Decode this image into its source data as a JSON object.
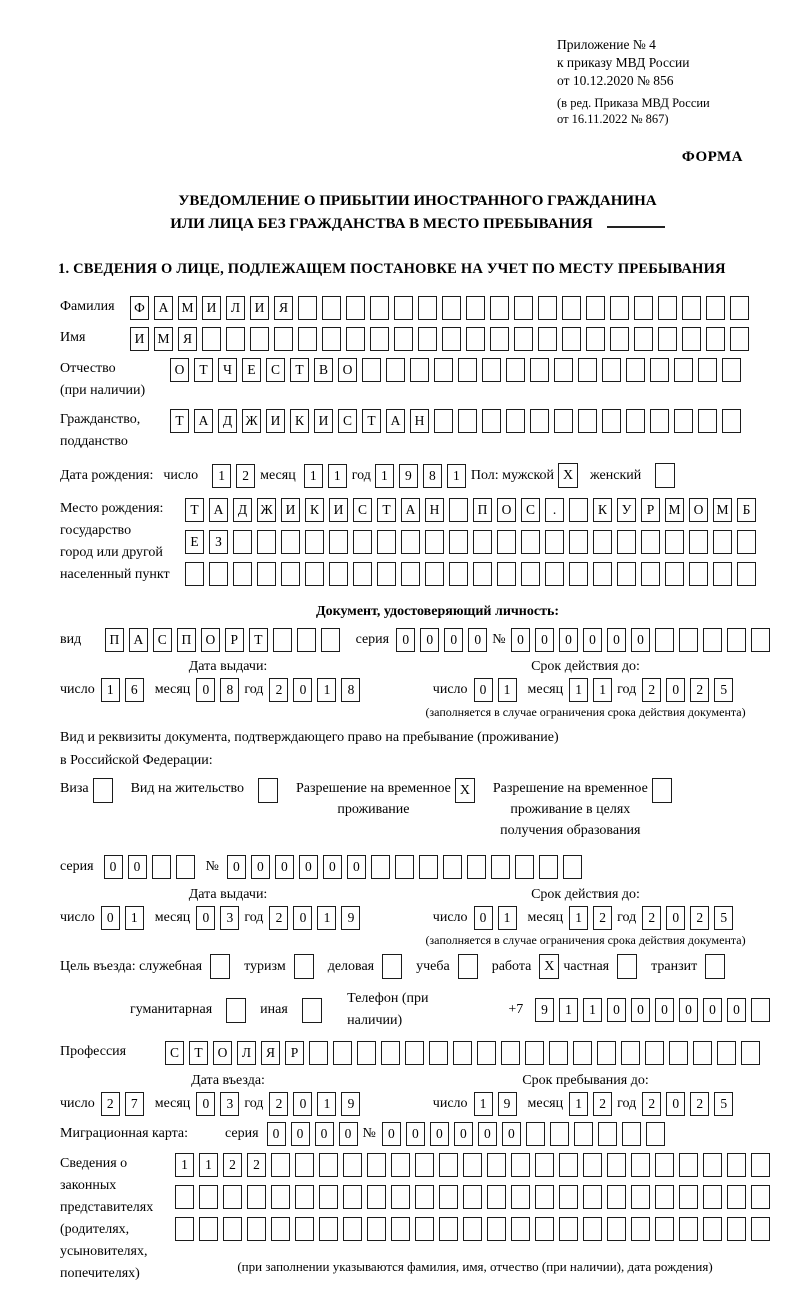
{
  "header": {
    "appendix_lines": [
      "Приложение № 4",
      "к приказу МВД России",
      "от 10.12.2020 № 856"
    ],
    "edition_lines": [
      "(в ред. Приказа МВД России",
      "от 16.11.2022 № 867)"
    ],
    "form_label": "ФОРМА"
  },
  "title": {
    "line1": "УВЕДОМЛЕНИЕ О ПРИБЫТИИ ИНОСТРАННОГО ГРАЖДАНИНА",
    "line2": "ИЛИ ЛИЦА БЕЗ ГРАЖДАНСТВА В МЕСТО ПРЕБЫВАНИЯ"
  },
  "section1_heading": "1. СВЕДЕНИЯ О ЛИЦЕ, ПОДЛЕЖАЩЕМ ПОСТАНОВКЕ НА УЧЕТ ПО МЕСТУ ПРЕБЫВАНИЯ",
  "labels": {
    "surname": "Фамилия",
    "first_name": "Имя",
    "patronymic_1": "Отчество",
    "patronymic_2": "(при наличии)",
    "citizenship_1": "Гражданство,",
    "citizenship_2": "подданство",
    "birth_date": "Дата рождения:",
    "day": "число",
    "month": "месяц",
    "year": "год",
    "sex": "Пол: мужской",
    "female": "женский",
    "birth_place_1": "Место рождения:",
    "birth_place_2": "государство",
    "birth_place_3": "город или другой",
    "birth_place_4": "населенный пункт",
    "identity_doc_heading": "Документ, удостоверяющий личность:",
    "doc_type": "вид",
    "series": "серия",
    "number_sign": "№",
    "issue_date": "Дата выдачи:",
    "valid_until": "Срок действия до:",
    "valid_note": "(заполняется в случае ограничения срока действия документа)",
    "residence_doc_1": "Вид и реквизиты документа, подтверждающего право на пребывание (проживание)",
    "residence_doc_2": "в Российской Федерации:",
    "visa": "Виза",
    "residence_permit": "Вид на жительство",
    "temp_residence_1": "Разрешение на временное",
    "temp_residence_2": "проживание",
    "temp_residence_edu_1": "Разрешение на временное",
    "temp_residence_edu_2": "проживание в целях",
    "temp_residence_edu_3": "получения образования",
    "visit_purpose": "Цель въезда: служебная",
    "tourism": "туризм",
    "business": "деловая",
    "study": "учеба",
    "work": "работа",
    "private": "частная",
    "transit": "транзит",
    "humanitarian": "гуманитарная",
    "other": "иная",
    "phone": "Телефон (при наличии)",
    "phone_prefix": "+7",
    "profession": "Профессия",
    "entry_date": "Дата въезда:",
    "stay_until": "Срок пребывания до:",
    "migration_card": "Миграционная карта:",
    "legal_rep_lines": [
      "Сведения о",
      "законных",
      "представителях",
      "(родителях,",
      "усыновителях,",
      "попечителях)"
    ],
    "legal_rep_note": "(при заполнении указываются фамилия, имя, отчество (при наличии), дата рождения)"
  },
  "fields": {
    "surname": {
      "value": "ФАМИЛИЯ",
      "length": 26
    },
    "first_name": {
      "value": "ИМЯ",
      "length": 26
    },
    "patronymic": {
      "value": "ОТЧЕСТВО",
      "length": 24
    },
    "citizenship": {
      "value": "ТАДЖИКИСТАН",
      "length": 24
    },
    "birth_day": {
      "value": "12",
      "length": 2
    },
    "birth_month": {
      "value": "11",
      "length": 2
    },
    "birth_year": {
      "value": "1981",
      "length": 4
    },
    "birth_place_row1": {
      "value": "ТАДЖИКИСТАН ПОС. КУРМОМБ",
      "length": 24
    },
    "birth_place_row2": {
      "value": "ЕЗ",
      "length": 24
    },
    "birth_place_row3": {
      "value": "",
      "length": 24
    },
    "passport_type": {
      "value": "ПАСПОРТ",
      "length": 10
    },
    "passport_series": {
      "value": "0000",
      "length": 4
    },
    "passport_number": {
      "value": "000000",
      "length": 11
    },
    "passport_issue_day": {
      "value": "16",
      "length": 2
    },
    "passport_issue_month": {
      "value": "08",
      "length": 2
    },
    "passport_issue_year": {
      "value": "2018",
      "length": 4
    },
    "passport_expiry_day": {
      "value": "01",
      "length": 2
    },
    "passport_expiry_month": {
      "value": "11",
      "length": 2
    },
    "passport_expiry_year": {
      "value": "2025",
      "length": 4
    },
    "rvp_series": {
      "value": "00",
      "length": 4
    },
    "rvp_number": {
      "value": "000000",
      "length": 15
    },
    "rvp_issue_day": {
      "value": "01",
      "length": 2
    },
    "rvp_issue_month": {
      "value": "03",
      "length": 2
    },
    "rvp_issue_year": {
      "value": "2019",
      "length": 4
    },
    "rvp_expiry_day": {
      "value": "01",
      "length": 2
    },
    "rvp_expiry_month": {
      "value": "12",
      "length": 2
    },
    "rvp_expiry_year": {
      "value": "2025",
      "length": 4
    },
    "phone_number": {
      "value": "911000000",
      "length": 10
    },
    "profession": {
      "value": "СТОЛЯР",
      "length": 25
    },
    "entry_day": {
      "value": "27",
      "length": 2
    },
    "entry_month": {
      "value": "03",
      "length": 2
    },
    "entry_year": {
      "value": "2019",
      "length": 4
    },
    "stay_day": {
      "value": "19",
      "length": 2
    },
    "stay_month": {
      "value": "12",
      "length": 2
    },
    "stay_year": {
      "value": "2025",
      "length": 4
    },
    "mig_card_series": {
      "value": "0000",
      "length": 4
    },
    "mig_card_number": {
      "value": "000000",
      "length": 12
    },
    "legal_rep_row1": {
      "value": "1122",
      "length": 25
    },
    "legal_rep_row2": {
      "value": "",
      "length": 25
    },
    "legal_rep_row3": {
      "value": "",
      "length": 25
    }
  },
  "checks": {
    "male": true,
    "female": false,
    "visa": false,
    "residence_permit": false,
    "temp_residence": true,
    "temp_residence_edu": false,
    "official": false,
    "tourism": false,
    "business": false,
    "study": false,
    "work": true,
    "private": false,
    "transit": false,
    "humanitarian": false,
    "other": false
  }
}
